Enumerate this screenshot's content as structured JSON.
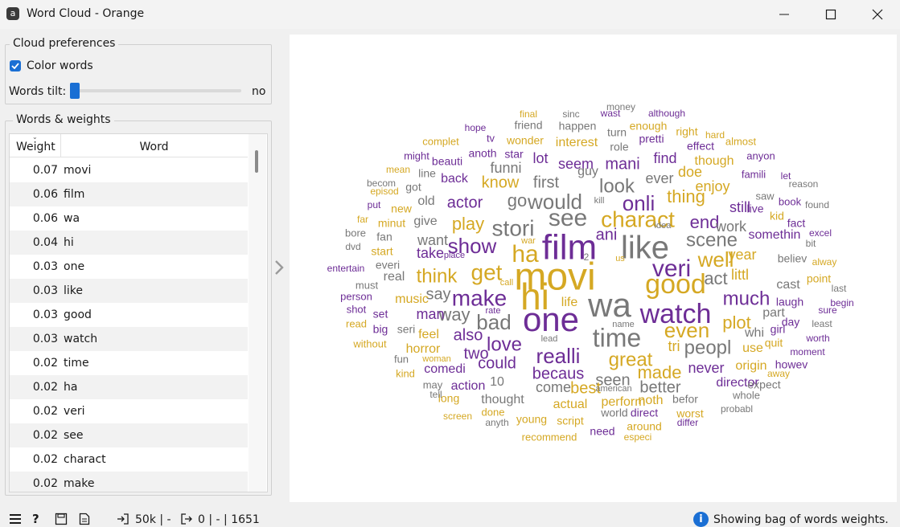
{
  "window": {
    "title": "Word Cloud - Orange",
    "app_icon_letter": "a"
  },
  "controls": {
    "cloud_prefs_title": "Cloud preferences",
    "color_words_label": "Color words",
    "color_words_checked": true,
    "tilt_label": "Words tilt:",
    "tilt_value": "no",
    "tilt_level": 0
  },
  "table": {
    "group_title": "Words & weights",
    "header_weight": "Weight",
    "header_word": "Word",
    "rows": [
      {
        "weight": "0.07",
        "word": "movi"
      },
      {
        "weight": "0.06",
        "word": "film"
      },
      {
        "weight": "0.06",
        "word": "wa"
      },
      {
        "weight": "0.04",
        "word": "hi"
      },
      {
        "weight": "0.03",
        "word": "one"
      },
      {
        "weight": "0.03",
        "word": "like"
      },
      {
        "weight": "0.03",
        "word": "good"
      },
      {
        "weight": "0.03",
        "word": "watch"
      },
      {
        "weight": "0.02",
        "word": "time"
      },
      {
        "weight": "0.02",
        "word": "ha"
      },
      {
        "weight": "0.02",
        "word": "veri"
      },
      {
        "weight": "0.02",
        "word": "see"
      },
      {
        "weight": "0.02",
        "word": "charact"
      },
      {
        "weight": "0.02",
        "word": "make"
      }
    ]
  },
  "colors": {
    "gold": "#d5a823",
    "purple": "#6d2d96",
    "gray": "#787878",
    "accent": "#1a6fd4"
  },
  "cloud_words": [
    {
      "text": "movi",
      "size": 48,
      "color": "gold"
    },
    {
      "text": "film",
      "size": 44,
      "color": "purple"
    },
    {
      "text": "wa",
      "size": 42,
      "color": "gray"
    },
    {
      "text": "hi",
      "size": 46,
      "color": "gold"
    },
    {
      "text": "one",
      "size": 42,
      "color": "purple"
    },
    {
      "text": "like",
      "size": 40,
      "color": "gray"
    },
    {
      "text": "good",
      "size": 34,
      "color": "gold"
    },
    {
      "text": "watch",
      "size": 34,
      "color": "purple"
    },
    {
      "text": "time",
      "size": 32,
      "color": "gray"
    },
    {
      "text": "ha",
      "size": 30,
      "color": "gold"
    },
    {
      "text": "veri",
      "size": 30,
      "color": "purple"
    },
    {
      "text": "see",
      "size": 30,
      "color": "gray"
    },
    {
      "text": "charact",
      "size": 28,
      "color": "gold"
    },
    {
      "text": "make",
      "size": 28,
      "color": "purple"
    },
    {
      "text": "stori",
      "size": 28,
      "color": "gray"
    },
    {
      "text": "get",
      "size": 28,
      "color": "gold"
    },
    {
      "text": "show",
      "size": 26,
      "color": "purple"
    },
    {
      "text": "bad",
      "size": 26,
      "color": "gray"
    },
    {
      "text": "realli",
      "size": 26,
      "color": "purple"
    },
    {
      "text": "well",
      "size": 26,
      "color": "gold"
    },
    {
      "text": "scene",
      "size": 24,
      "color": "gray"
    },
    {
      "text": "onli",
      "size": 26,
      "color": "purple"
    },
    {
      "text": "would",
      "size": 26,
      "color": "gray"
    },
    {
      "text": "even",
      "size": 26,
      "color": "gold"
    },
    {
      "text": "love",
      "size": 24,
      "color": "purple"
    },
    {
      "text": "great",
      "size": 24,
      "color": "gold"
    },
    {
      "text": "peopl",
      "size": 24,
      "color": "gray"
    },
    {
      "text": "much",
      "size": 24,
      "color": "purple"
    },
    {
      "text": "look",
      "size": 24,
      "color": "gray"
    },
    {
      "text": "think",
      "size": 24,
      "color": "gold"
    },
    {
      "text": "end",
      "size": 22,
      "color": "purple"
    },
    {
      "text": "thing",
      "size": 22,
      "color": "gold"
    },
    {
      "text": "act",
      "size": 22,
      "color": "gray"
    },
    {
      "text": "plot",
      "size": 22,
      "color": "gold"
    },
    {
      "text": "could",
      "size": 20,
      "color": "purple"
    },
    {
      "text": "becaus",
      "size": 20,
      "color": "purple"
    },
    {
      "text": "made",
      "size": 22,
      "color": "gold"
    },
    {
      "text": "play",
      "size": 22,
      "color": "gold"
    },
    {
      "text": "actor",
      "size": 20,
      "color": "purple"
    },
    {
      "text": "go",
      "size": 22,
      "color": "gray"
    },
    {
      "text": "way",
      "size": 22,
      "color": "gray"
    },
    {
      "text": "also",
      "size": 20,
      "color": "purple"
    },
    {
      "text": "say",
      "size": 20,
      "color": "gray"
    },
    {
      "text": "seen",
      "size": 20,
      "color": "gray"
    },
    {
      "text": "better",
      "size": 20,
      "color": "gray"
    },
    {
      "text": "mani",
      "size": 20,
      "color": "purple"
    },
    {
      "text": "first",
      "size": 20,
      "color": "gray"
    },
    {
      "text": "know",
      "size": 20,
      "color": "gold"
    },
    {
      "text": "ani",
      "size": 20,
      "color": "purple"
    },
    {
      "text": "two",
      "size": 20,
      "color": "purple"
    },
    {
      "text": "littl",
      "size": 18,
      "color": "gold"
    },
    {
      "text": "year",
      "size": 18,
      "color": "gold"
    },
    {
      "text": "never",
      "size": 18,
      "color": "purple"
    },
    {
      "text": "best",
      "size": 20,
      "color": "gold"
    },
    {
      "text": "seem",
      "size": 18,
      "color": "purple"
    },
    {
      "text": "ever",
      "size": 18,
      "color": "gray"
    },
    {
      "text": "work",
      "size": 18,
      "color": "gray"
    },
    {
      "text": "somethin",
      "size": 16,
      "color": "purple"
    },
    {
      "text": "still",
      "size": 18,
      "color": "purple"
    },
    {
      "text": "enjoy",
      "size": 18,
      "color": "gold"
    },
    {
      "text": "doe",
      "size": 18,
      "color": "gold"
    },
    {
      "text": "find",
      "size": 18,
      "color": "purple"
    },
    {
      "text": "lot",
      "size": 18,
      "color": "purple"
    },
    {
      "text": "funni",
      "size": 18,
      "color": "gray"
    },
    {
      "text": "come",
      "size": 18,
      "color": "gray"
    },
    {
      "text": "director",
      "size": 16,
      "color": "purple"
    },
    {
      "text": "tri",
      "size": 18,
      "color": "gold"
    },
    {
      "text": "man",
      "size": 18,
      "color": "purple"
    },
    {
      "text": "take",
      "size": 18,
      "color": "purple"
    },
    {
      "text": "want",
      "size": 18,
      "color": "gray"
    },
    {
      "text": "music",
      "size": 16,
      "color": "gold"
    },
    {
      "text": "feel",
      "size": 16,
      "color": "gold"
    },
    {
      "text": "part",
      "size": 16,
      "color": "gray"
    },
    {
      "text": "perform",
      "size": 16,
      "color": "gold"
    },
    {
      "text": "actual",
      "size": 16,
      "color": "gold"
    },
    {
      "text": "whi",
      "size": 16,
      "color": "gray"
    },
    {
      "text": "use",
      "size": 16,
      "color": "gold"
    },
    {
      "text": "laugh",
      "size": 14,
      "color": "purple"
    },
    {
      "text": "cast",
      "size": 16,
      "color": "gray"
    },
    {
      "text": "girl",
      "size": 14,
      "color": "purple"
    },
    {
      "text": "comedi",
      "size": 16,
      "color": "purple"
    },
    {
      "text": "horror",
      "size": 16,
      "color": "gold"
    },
    {
      "text": "action",
      "size": 16,
      "color": "purple"
    },
    {
      "text": "thought",
      "size": 16,
      "color": "gray"
    },
    {
      "text": "life",
      "size": 16,
      "color": "gold"
    },
    {
      "text": "real",
      "size": 16,
      "color": "gray"
    },
    {
      "text": "give",
      "size": 16,
      "color": "gray"
    },
    {
      "text": "old",
      "size": 16,
      "color": "gray"
    },
    {
      "text": "back",
      "size": 16,
      "color": "purple"
    },
    {
      "text": "interest",
      "size": 16,
      "color": "gold"
    },
    {
      "text": "wonder",
      "size": 14,
      "color": "gold"
    },
    {
      "text": "star",
      "size": 14,
      "color": "purple"
    },
    {
      "text": "anoth",
      "size": 14,
      "color": "purple"
    },
    {
      "text": "beauti",
      "size": 14,
      "color": "purple"
    },
    {
      "text": "guy",
      "size": 16,
      "color": "gray"
    },
    {
      "text": "role",
      "size": 14,
      "color": "gray"
    },
    {
      "text": "pretti",
      "size": 14,
      "color": "purple"
    },
    {
      "text": "though",
      "size": 16,
      "color": "gold"
    },
    {
      "text": "effect",
      "size": 14,
      "color": "purple"
    },
    {
      "text": "friend",
      "size": 14,
      "color": "gray"
    },
    {
      "text": "happen",
      "size": 14,
      "color": "gray"
    },
    {
      "text": "turn",
      "size": 14,
      "color": "gray"
    },
    {
      "text": "enough",
      "size": 14,
      "color": "gold"
    },
    {
      "text": "right",
      "size": 14,
      "color": "gold"
    },
    {
      "text": "origin",
      "size": 16,
      "color": "gold"
    },
    {
      "text": "howev",
      "size": 14,
      "color": "purple"
    },
    {
      "text": "quit",
      "size": 14,
      "color": "gold"
    },
    {
      "text": "day",
      "size": 14,
      "color": "purple"
    },
    {
      "text": "live",
      "size": 14,
      "color": "purple"
    },
    {
      "text": "kid",
      "size": 14,
      "color": "gold"
    },
    {
      "text": "fact",
      "size": 14,
      "color": "purple"
    },
    {
      "text": "believ",
      "size": 14,
      "color": "gray"
    },
    {
      "text": "point",
      "size": 14,
      "color": "gold"
    },
    {
      "text": "noth",
      "size": 16,
      "color": "gold"
    },
    {
      "text": "befor",
      "size": 14,
      "color": "gray"
    },
    {
      "text": "young",
      "size": 14,
      "color": "gold"
    },
    {
      "text": "script",
      "size": 14,
      "color": "gold"
    },
    {
      "text": "world",
      "size": 14,
      "color": "gray"
    },
    {
      "text": "direct",
      "size": 14,
      "color": "purple"
    },
    {
      "text": "need",
      "size": 14,
      "color": "purple"
    },
    {
      "text": "around",
      "size": 14,
      "color": "gold"
    },
    {
      "text": "worst",
      "size": 14,
      "color": "gold"
    },
    {
      "text": "expect",
      "size": 14,
      "color": "gray"
    },
    {
      "text": "whole",
      "size": 13,
      "color": "gray"
    },
    {
      "text": "long",
      "size": 14,
      "color": "gold"
    },
    {
      "text": "may",
      "size": 13,
      "color": "gray"
    },
    {
      "text": "big",
      "size": 14,
      "color": "purple"
    },
    {
      "text": "set",
      "size": 14,
      "color": "purple"
    },
    {
      "text": "seri",
      "size": 14,
      "color": "gray"
    },
    {
      "text": "fun",
      "size": 13,
      "color": "gray"
    },
    {
      "text": "new",
      "size": 14,
      "color": "gold"
    },
    {
      "text": "got",
      "size": 14,
      "color": "gray"
    },
    {
      "text": "line",
      "size": 14,
      "color": "gray"
    },
    {
      "text": "everi",
      "size": 14,
      "color": "gray"
    },
    {
      "text": "must",
      "size": 13,
      "color": "gray"
    },
    {
      "text": "person",
      "size": 13,
      "color": "purple"
    },
    {
      "text": "shot",
      "size": 13,
      "color": "purple"
    },
    {
      "text": "read",
      "size": 13,
      "color": "gold"
    },
    {
      "text": "without",
      "size": 13,
      "color": "gold"
    },
    {
      "text": "kind",
      "size": 13,
      "color": "gold"
    },
    {
      "text": "tell",
      "size": 12,
      "color": "gray"
    },
    {
      "text": "screen",
      "size": 12,
      "color": "gold"
    },
    {
      "text": "done",
      "size": 13,
      "color": "gold"
    },
    {
      "text": "anyth",
      "size": 12,
      "color": "gray"
    },
    {
      "text": "recommend",
      "size": 13,
      "color": "gold"
    },
    {
      "text": "especi",
      "size": 12,
      "color": "gold"
    },
    {
      "text": "differ",
      "size": 12,
      "color": "purple"
    },
    {
      "text": "probabl",
      "size": 12,
      "color": "gray"
    },
    {
      "text": "away",
      "size": 12,
      "color": "gold"
    },
    {
      "text": "moment",
      "size": 12,
      "color": "purple"
    },
    {
      "text": "worth",
      "size": 12,
      "color": "purple"
    },
    {
      "text": "least",
      "size": 12,
      "color": "gray"
    },
    {
      "text": "sure",
      "size": 12,
      "color": "purple"
    },
    {
      "text": "begin",
      "size": 12,
      "color": "purple"
    },
    {
      "text": "last",
      "size": 12,
      "color": "gray"
    },
    {
      "text": "alway",
      "size": 12,
      "color": "gold"
    },
    {
      "text": "bit",
      "size": 12,
      "color": "gray"
    },
    {
      "text": "excel",
      "size": 12,
      "color": "purple"
    },
    {
      "text": "found",
      "size": 12,
      "color": "gray"
    },
    {
      "text": "book",
      "size": 13,
      "color": "purple"
    },
    {
      "text": "saw",
      "size": 13,
      "color": "gray"
    },
    {
      "text": "reason",
      "size": 12,
      "color": "gray"
    },
    {
      "text": "let",
      "size": 12,
      "color": "purple"
    },
    {
      "text": "famili",
      "size": 13,
      "color": "purple"
    },
    {
      "text": "anyon",
      "size": 13,
      "color": "purple"
    },
    {
      "text": "almost",
      "size": 13,
      "color": "gold"
    },
    {
      "text": "hard",
      "size": 12,
      "color": "gold"
    },
    {
      "text": "although",
      "size": 12,
      "color": "purple"
    },
    {
      "text": "money",
      "size": 12,
      "color": "gray"
    },
    {
      "text": "wast",
      "size": 12,
      "color": "purple"
    },
    {
      "text": "sinc",
      "size": 12,
      "color": "gray"
    },
    {
      "text": "final",
      "size": 12,
      "color": "gold"
    },
    {
      "text": "hope",
      "size": 12,
      "color": "purple"
    },
    {
      "text": "tv",
      "size": 13,
      "color": "purple"
    },
    {
      "text": "complet",
      "size": 13,
      "color": "gold"
    },
    {
      "text": "might",
      "size": 13,
      "color": "purple"
    },
    {
      "text": "mean",
      "size": 12,
      "color": "gold"
    },
    {
      "text": "becom",
      "size": 12,
      "color": "gray"
    },
    {
      "text": "episod",
      "size": 12,
      "color": "gold"
    },
    {
      "text": "put",
      "size": 12,
      "color": "purple"
    },
    {
      "text": "far",
      "size": 12,
      "color": "gold"
    },
    {
      "text": "bore",
      "size": 13,
      "color": "gray"
    },
    {
      "text": "dvd",
      "size": 12,
      "color": "gray"
    },
    {
      "text": "fan",
      "size": 14,
      "color": "gray"
    },
    {
      "text": "start",
      "size": 14,
      "color": "gold"
    },
    {
      "text": "minut",
      "size": 14,
      "color": "gold"
    },
    {
      "text": "entertain",
      "size": 12,
      "color": "purple"
    },
    {
      "text": "call",
      "size": 11,
      "color": "gold"
    },
    {
      "text": "rate",
      "size": 11,
      "color": "purple"
    },
    {
      "text": "lead",
      "size": 11,
      "color": "gray"
    },
    {
      "text": "woman",
      "size": 11,
      "color": "gold"
    },
    {
      "text": "place",
      "size": 11,
      "color": "purple"
    },
    {
      "text": "war",
      "size": 11,
      "color": "gold"
    },
    {
      "text": "kill",
      "size": 11,
      "color": "gray"
    },
    {
      "text": "idea",
      "size": 11,
      "color": "gray"
    },
    {
      "text": "us",
      "size": 11,
      "color": "gold"
    },
    {
      "text": "name",
      "size": 11,
      "color": "gray"
    },
    {
      "text": "american",
      "size": 11,
      "color": "gray"
    },
    {
      "text": "2",
      "size": 12,
      "color": "gray"
    },
    {
      "text": "10",
      "size": 16,
      "color": "gray"
    }
  ],
  "status": {
    "input_summary": "50k | -",
    "output_summary": "0 | - | 1651",
    "message": "Showing bag of words weights."
  }
}
